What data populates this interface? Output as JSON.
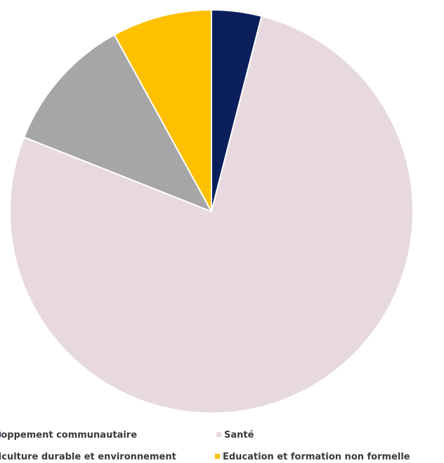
{
  "chart_data": {
    "type": "pie",
    "title": "",
    "start_angle_deg": 0,
    "direction": "clockwise",
    "legend_position": "bottom",
    "slices": [
      {
        "label": "Développement communautaire",
        "value": 4,
        "color": "#0a1f5c"
      },
      {
        "label": "Santé",
        "value": 77,
        "color": "#e8d8e0"
      },
      {
        "label": "Agriculture durable et environnement",
        "value": 11,
        "color": "#a6a6a6"
      },
      {
        "label": "Education et formation non formelle",
        "value": 8,
        "color": "#ffc000"
      }
    ]
  }
}
